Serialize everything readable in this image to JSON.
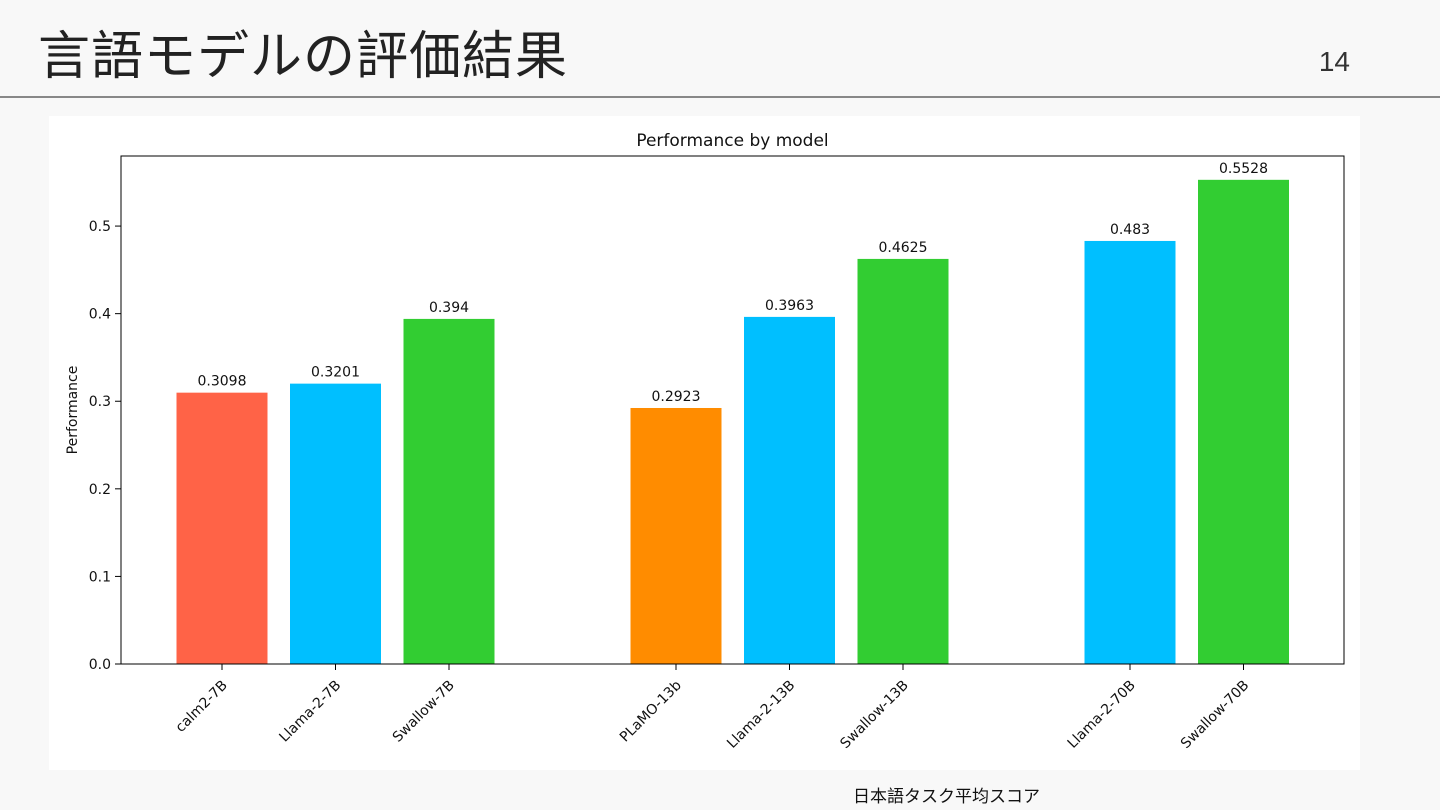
{
  "slide": {
    "title": "言語モデルの評価結果",
    "page_number": "14",
    "caption": "日本語タスク平均スコア"
  },
  "chart_data": {
    "type": "bar",
    "title": "Performance by model",
    "xlabel": "",
    "ylabel": "Performance",
    "ylim": [
      0,
      0.58
    ],
    "yticks": [
      0.0,
      0.1,
      0.2,
      0.3,
      0.4,
      0.5
    ],
    "grid": false,
    "groups": [
      {
        "bars": [
          {
            "label": "calm2-7B",
            "value": 0.3098,
            "color": "#ff6347"
          },
          {
            "label": "Llama-2-7B",
            "value": 0.3201,
            "color": "#00bfff"
          },
          {
            "label": "Swallow-7B",
            "value": 0.394,
            "color": "#32cd32"
          }
        ]
      },
      {
        "bars": [
          {
            "label": "PLaMO-13b",
            "value": 0.2923,
            "color": "#ff8c00"
          },
          {
            "label": "Llama-2-13B",
            "value": 0.3963,
            "color": "#00bfff"
          },
          {
            "label": "Swallow-13B",
            "value": 0.4625,
            "color": "#32cd32"
          }
        ]
      },
      {
        "bars": [
          {
            "label": "Llama-2-70B",
            "value": 0.483,
            "color": "#00bfff"
          },
          {
            "label": "Swallow-70B",
            "value": 0.5528,
            "color": "#32cd32"
          }
        ]
      }
    ]
  }
}
